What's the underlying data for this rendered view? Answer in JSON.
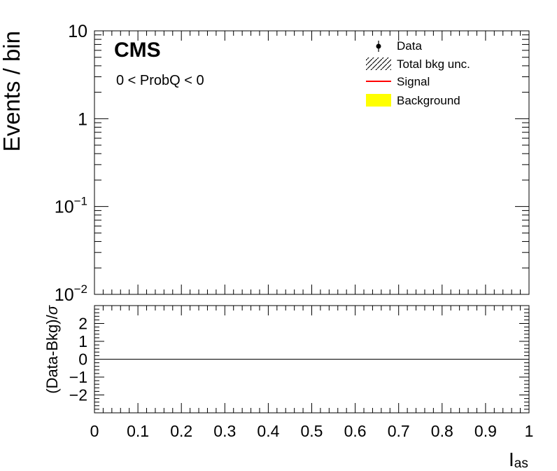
{
  "chart_data": [
    {
      "panel": "main",
      "type": "line",
      "title": "",
      "experiment_label": "CMS",
      "selection_label": "0 < ProbQ < 0",
      "ylabel": "Events / bin",
      "xlabel": "",
      "yscale": "log",
      "ylim": [
        0.01,
        10
      ],
      "xlim": [
        0,
        1
      ],
      "ytick_labels": [
        {
          "value": 10,
          "base": "10",
          "exp": ""
        },
        {
          "value": 1,
          "base": "1",
          "exp": ""
        },
        {
          "value": 0.1,
          "base": "10",
          "exp": "−1"
        },
        {
          "value": 0.01,
          "base": "10",
          "exp": "−2"
        }
      ],
      "legend_position": "top-right",
      "legend": [
        {
          "key": "data",
          "label": "Data",
          "marker": "point-errorbar",
          "color": "#000000"
        },
        {
          "key": "unc",
          "label": "Total bkg unc.",
          "marker": "hatch",
          "color": "#000000"
        },
        {
          "key": "signal",
          "label": "Signal",
          "marker": "line",
          "color": "#ff0000"
        },
        {
          "key": "bkg",
          "label": "Background",
          "marker": "fill",
          "color": "#ffff00"
        }
      ],
      "series": []
    },
    {
      "panel": "ratio",
      "type": "line",
      "ylabel_main": "(Data-Bkg)/",
      "ylabel_sigma": "σ",
      "xlabel_main": "I",
      "xlabel_sub": "as",
      "xlim": [
        0,
        1
      ],
      "ylim": [
        -3,
        3
      ],
      "yticks": [
        2,
        1,
        0,
        -1,
        -2
      ],
      "ytick_labels": [
        "2",
        "1",
        "0",
        "−1",
        "−2"
      ],
      "xticks": [
        0,
        0.1,
        0.2,
        0.3,
        0.4,
        0.5,
        0.6,
        0.7,
        0.8,
        0.9,
        1
      ],
      "xtick_labels": [
        "0",
        "0.1",
        "0.2",
        "0.3",
        "0.4",
        "0.5",
        "0.6",
        "0.7",
        "0.8",
        "0.9",
        "1"
      ],
      "reference_line": 0,
      "series": []
    }
  ]
}
